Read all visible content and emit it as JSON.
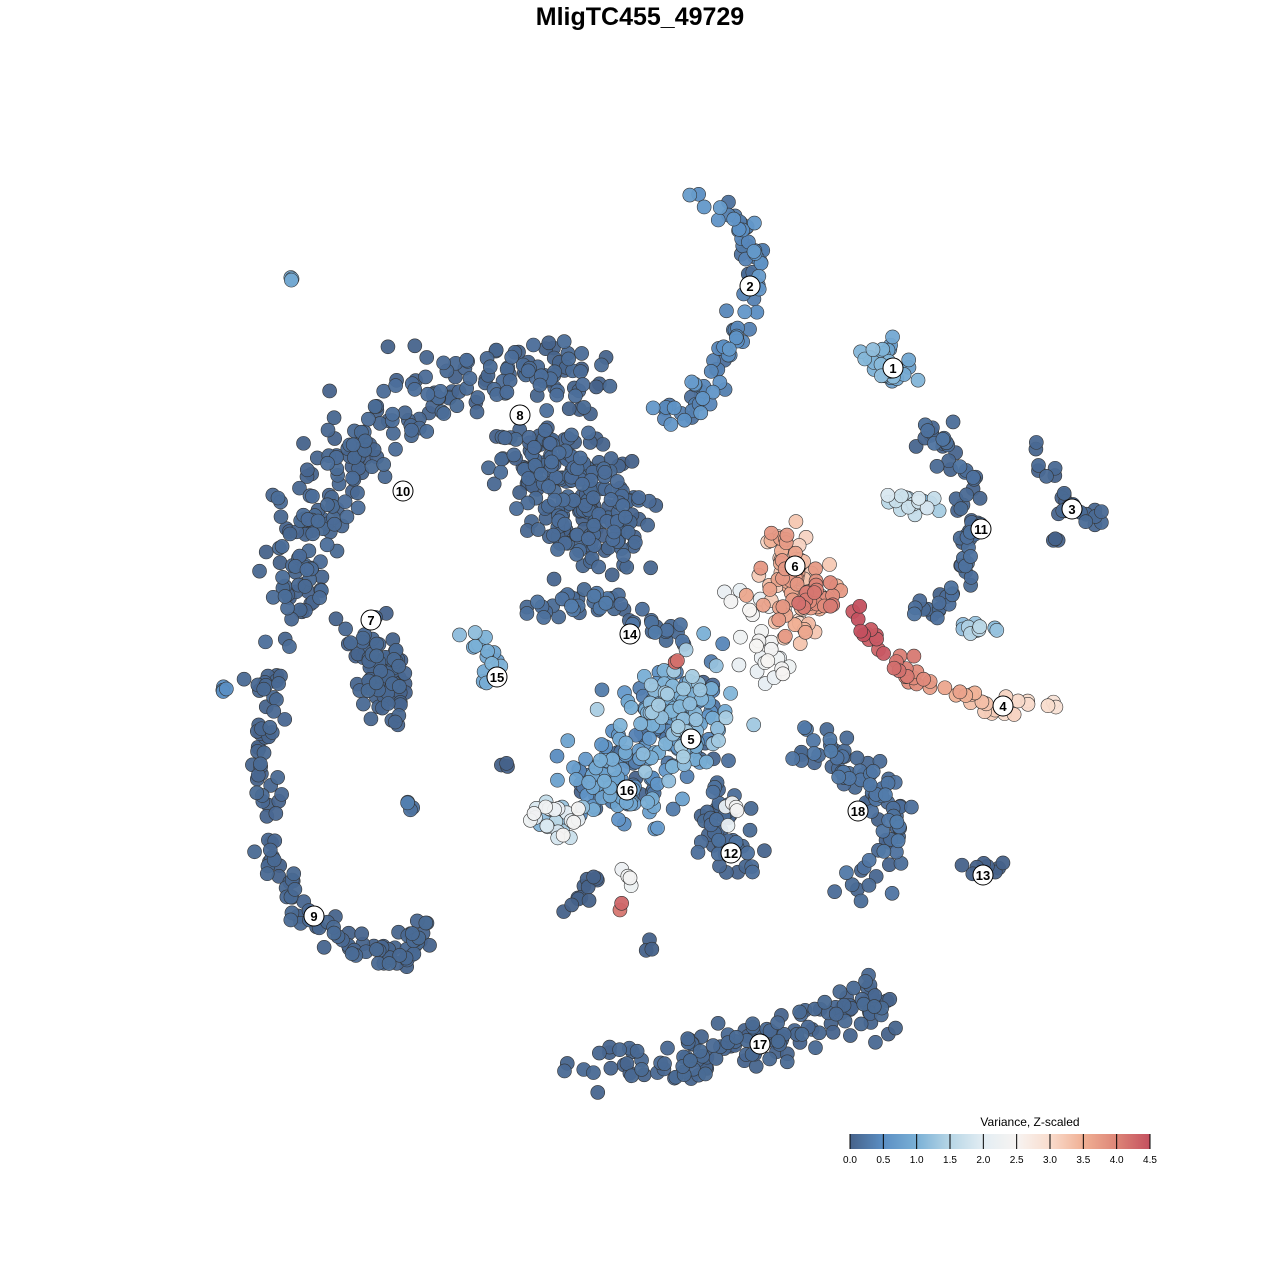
{
  "chart_data": {
    "type": "scatter",
    "title": "MligTC455_49729",
    "xlabel": "",
    "ylabel": "",
    "grid": false,
    "legend": {
      "title": "Variance, Z-scaled",
      "placement": "bottom-right",
      "range": [
        0,
        4.5
      ],
      "ticks": [
        "0.0",
        "0.5",
        "1.0",
        "1.5",
        "2.0",
        "2.5",
        "3.0",
        "3.5",
        "4.0",
        "4.5"
      ],
      "colors": [
        "#46628a",
        "#5b8fc4",
        "#7ab0d6",
        "#b7d6e6",
        "#e3edf3",
        "#f7f4f2",
        "#f9dccd",
        "#f0b094",
        "#dd8577",
        "#c4505f"
      ]
    },
    "point_groups": [
      {
        "path": [
          [
            5,
            44.5
          ],
          [
            10,
            42
          ],
          [
            12,
            38
          ],
          [
            11,
            34
          ],
          [
            9,
            29
          ],
          [
            6,
            24
          ],
          [
            2.5,
            22.5
          ]
        ],
        "spread": 1.5,
        "n": 90,
        "value": 0.1,
        "jitter": 0.6
      },
      {
        "path": [
          [
            24,
            28
          ],
          [
            25,
            27
          ]
        ],
        "spread": 2,
        "n": 30,
        "value": 0.6,
        "jitter": 0.6
      },
      {
        "path": [
          [
            -35,
            36.5
          ],
          [
            -34.5,
            36
          ]
        ],
        "spread": 0.4,
        "n": 3,
        "value": 0.9,
        "jitter": 0
      },
      {
        "path": [
          [
            -5,
            26
          ],
          [
            -12,
            27
          ],
          [
            -19,
            26
          ],
          [
            -26,
            22
          ],
          [
            -31,
            16
          ],
          [
            -34,
            9
          ],
          [
            -35,
            2
          ]
        ],
        "spread": 3.5,
        "n": 260,
        "value": 0.0,
        "jitter": 0.15
      },
      {
        "path": [
          [
            -12,
            19
          ],
          [
            -5,
            15
          ],
          [
            -4,
            10
          ]
        ],
        "spread": 5,
        "n": 250,
        "value": 0.0,
        "jitter": 0.15
      },
      {
        "path": [
          [
            -27,
            -1
          ],
          [
            -25,
            -6
          ]
        ],
        "spread": 3,
        "n": 90,
        "value": 0.0,
        "jitter": 0.1
      },
      {
        "path": [
          [
            -37,
            -3
          ],
          [
            -37.5,
            -11
          ],
          [
            -37,
            -21
          ],
          [
            -34,
            -27
          ],
          [
            -29,
            -30
          ],
          [
            -24,
            -32
          ],
          [
            -21.5,
            -28.5
          ]
        ],
        "spread": 1.5,
        "n": 130,
        "value": 0.0,
        "jitter": 0.1
      },
      {
        "path": [
          [
            -42,
            -5
          ],
          [
            -41.5,
            -4.8
          ]
        ],
        "spread": 0.3,
        "n": 4,
        "value": 0.5,
        "jitter": 0
      },
      {
        "path": [
          [
            39,
            19
          ],
          [
            41,
            17
          ],
          [
            43,
            13
          ],
          [
            46,
            12
          ]
        ],
        "spread": 1,
        "n": 25,
        "value": 0.0,
        "jitter": 0.1
      },
      {
        "path": [
          [
            41,
            10.5
          ],
          [
            42,
            10.5
          ]
        ],
        "spread": 0.5,
        "n": 3,
        "value": 0.0,
        "jitter": 0
      },
      {
        "path": [
          [
            29,
            21
          ],
          [
            32,
            17
          ],
          [
            33,
            12
          ],
          [
            32.5,
            6
          ],
          [
            28,
            3
          ]
        ],
        "spread": 1.5,
        "n": 70,
        "value": 0.0,
        "jitter": 0.2
      },
      {
        "path": [
          [
            24,
            14
          ],
          [
            30,
            13
          ]
        ],
        "spread": 1.2,
        "n": 20,
        "value": 0.9,
        "jitter": 1.0
      },
      {
        "path": [
          [
            32,
            1
          ],
          [
            36,
            1
          ]
        ],
        "spread": 0.6,
        "n": 10,
        "value": 1.1,
        "jitter": 0.5
      },
      {
        "path": [
          [
            14.5,
            10
          ],
          [
            15,
            7
          ],
          [
            15.5,
            4
          ],
          [
            16,
            2
          ]
        ],
        "spread": 3,
        "n": 90,
        "value": 3.0,
        "jitter": 0.8
      },
      {
        "path": [
          [
            19,
            4.5
          ],
          [
            16,
            4
          ]
        ],
        "spread": 1.5,
        "n": 20,
        "value": 3.8,
        "jitter": 0.4
      },
      {
        "path": [
          [
            10,
            7
          ],
          [
            12,
            -2
          ],
          [
            14,
            -3
          ]
        ],
        "spread": 2,
        "n": 25,
        "value": 2.1,
        "jitter": 0.4
      },
      {
        "path": [
          [
            22,
            3
          ],
          [
            24,
            -1
          ],
          [
            29,
            -4.5
          ],
          [
            36,
            -7
          ],
          [
            41.5,
            -6.5
          ]
        ],
        "spread": 1,
        "n": 50,
        "values": [
          4.4,
          4.3,
          3.7,
          3.0,
          2.8
        ],
        "jitter": 0.2
      },
      {
        "path": [
          [
            -11,
            3
          ],
          [
            -4,
            4
          ],
          [
            0,
            2
          ],
          [
            5,
            0
          ]
        ],
        "spread": 1.5,
        "n": 50,
        "value": 0.0,
        "jitter": 0.3
      },
      {
        "path": [
          [
            3,
            -2
          ],
          [
            4.5,
            -2.2
          ]
        ],
        "spread": 0.4,
        "n": 3,
        "value": 4.2,
        "jitter": 0
      },
      {
        "path": [
          [
            -18,
            1.5
          ],
          [
            -14.5,
            -2
          ],
          [
            -16,
            -6
          ]
        ],
        "spread": 1,
        "n": 15,
        "value": 0.7,
        "jitter": 0.5
      },
      {
        "path": [
          [
            2,
            -6
          ],
          [
            5,
            -10
          ]
        ],
        "spread": 5,
        "n": 180,
        "value": 0.0,
        "jitter": 1.4
      },
      {
        "path": [
          [
            -4,
            -13
          ],
          [
            0,
            -15
          ]
        ],
        "spread": 4,
        "n": 100,
        "value": 0.0,
        "jitter": 1.0
      },
      {
        "path": [
          [
            -10,
            -17
          ],
          [
            -7,
            -18
          ]
        ],
        "spread": 2,
        "n": 30,
        "value": 1.0,
        "jitter": 1.5
      },
      {
        "path": [
          [
            7,
            -16
          ],
          [
            10,
            -22
          ]
        ],
        "spread": 2.5,
        "n": 50,
        "value": 0.0,
        "jitter": 0.2
      },
      {
        "path": [
          [
            9,
            -16
          ],
          [
            9.5,
            -19
          ]
        ],
        "spread": 1,
        "n": 5,
        "value": 2.1,
        "jitter": 0.3
      },
      {
        "path": [
          [
            16,
            -11
          ],
          [
            22,
            -13
          ],
          [
            26,
            -19
          ],
          [
            22,
            -25
          ]
        ],
        "spread": 2.5,
        "n": 90,
        "value": 0.0,
        "jitter": 0.3
      },
      {
        "path": [
          [
            33,
            -23
          ],
          [
            37,
            -22.5
          ]
        ],
        "spread": 0.8,
        "n": 8,
        "value": 0.0,
        "jitter": 0
      },
      {
        "path": [
          [
            -6,
            -42.5
          ],
          [
            4,
            -42
          ],
          [
            12,
            -40
          ],
          [
            19,
            -37
          ],
          [
            25.5,
            -37
          ]
        ],
        "spread": 2.5,
        "n": 150,
        "value": 0.0,
        "jitter": 0.1
      },
      {
        "path": [
          [
            -23,
            -16.5
          ],
          [
            -22.5,
            -16.8
          ]
        ],
        "spread": 0.5,
        "n": 4,
        "value": 0.1,
        "jitter": 0.3
      },
      {
        "path": [
          [
            -1.8,
            -26
          ],
          [
            -2.6,
            -29
          ]
        ],
        "spread": 0.2,
        "n": 2,
        "value": 4.1,
        "jitter": 0.2
      },
      {
        "path": [
          [
            -8,
            -27.5
          ],
          [
            -4,
            -23
          ]
        ],
        "spread": 0.8,
        "n": 12,
        "value": 0.0,
        "jitter": 0
      },
      {
        "path": [
          [
            0.5,
            -31
          ],
          [
            1,
            -30.5
          ]
        ],
        "spread": 0.5,
        "n": 3,
        "value": 0.0,
        "jitter": 0
      },
      {
        "path": [
          [
            -15,
            -12
          ],
          [
            -13,
            -12.5
          ]
        ],
        "spread": 0.6,
        "n": 3,
        "value": 0.0,
        "jitter": 0
      },
      {
        "path": [
          [
            -2,
            -22
          ],
          [
            -1,
            -24
          ]
        ],
        "spread": 0.6,
        "n": 4,
        "value": 2.2,
        "jitter": 0.2
      }
    ],
    "cluster_labels": [
      {
        "text": "1",
        "x": 25.3,
        "y": 27.2
      },
      {
        "text": "2",
        "x": 11,
        "y": 35.4
      },
      {
        "text": "3",
        "x": 43.2,
        "y": 13.1
      },
      {
        "text": "4",
        "x": 36.3,
        "y": -6.6
      },
      {
        "text": "5",
        "x": 5.1,
        "y": -9.9
      },
      {
        "text": "6",
        "x": 15.5,
        "y": 7.4
      },
      {
        "text": "7",
        "x": -26.9,
        "y": 2
      },
      {
        "text": "8",
        "x": -12,
        "y": 22.5
      },
      {
        "text": "9",
        "x": -32.6,
        "y": -27.6
      },
      {
        "text": "10",
        "x": -23.7,
        "y": 14.9
      },
      {
        "text": "11",
        "x": 34.1,
        "y": 11.1
      },
      {
        "text": "12",
        "x": 9.1,
        "y": -21.3
      },
      {
        "text": "13",
        "x": 34.3,
        "y": -23.5
      },
      {
        "text": "14",
        "x": -1,
        "y": 0.6
      },
      {
        "text": "15",
        "x": -14.3,
        "y": -3.7
      },
      {
        "text": "16",
        "x": -1.3,
        "y": -15
      },
      {
        "text": "17",
        "x": 12,
        "y": -40.4
      },
      {
        "text": "18",
        "x": 21.8,
        "y": -17.1
      }
    ]
  }
}
